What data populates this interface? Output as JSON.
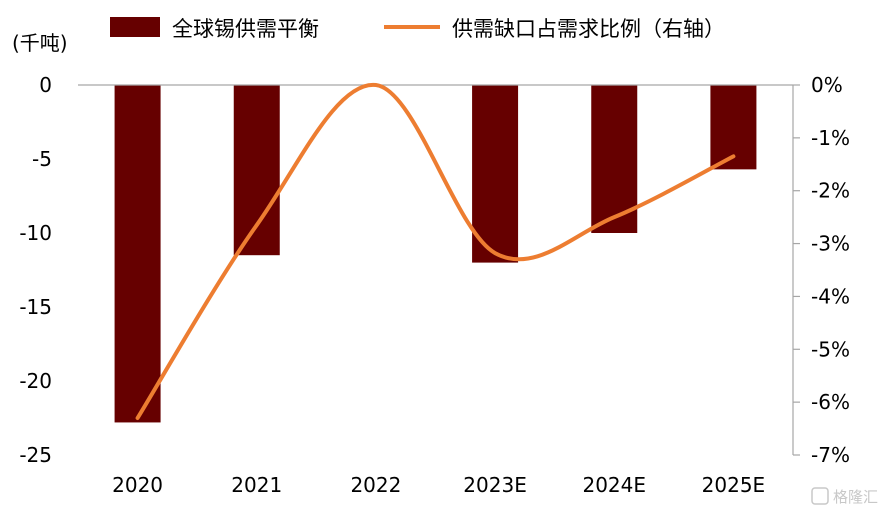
{
  "chart_data": {
    "type": "bar",
    "categories": [
      "2020",
      "2021",
      "2022",
      "2023E",
      "2024E",
      "2025E"
    ],
    "y_unit": "(千吨)",
    "ylim": [
      -25,
      0
    ],
    "y2lim": [
      -0.07,
      0
    ],
    "y_ticks": [
      "0",
      "-5",
      "-10",
      "-15",
      "-20",
      "-25"
    ],
    "y2_ticks": [
      "0%",
      "-1%",
      "-2%",
      "-3%",
      "-4%",
      "-5%",
      "-6%",
      "-7%"
    ],
    "series": [
      {
        "name": "全球锡供需平衡",
        "type": "bar",
        "axis": "left",
        "values": [
          -22.8,
          -11.5,
          0,
          -12.0,
          -10.0,
          -5.7
        ],
        "color": "#660000"
      },
      {
        "name": "供需缺口占需求比例（右轴）",
        "type": "line",
        "axis": "right",
        "values": [
          -0.063,
          -0.0265,
          0.0,
          -0.0318,
          -0.025,
          -0.0135
        ],
        "color": "#ed7d31"
      }
    ],
    "legend": "top",
    "grid": false
  },
  "watermark": "格隆汇"
}
